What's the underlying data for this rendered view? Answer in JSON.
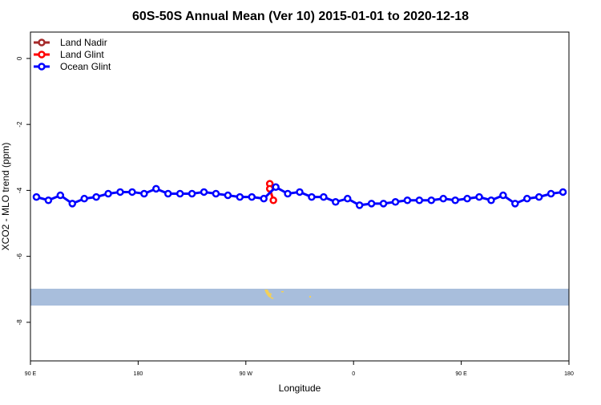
{
  "chart_data": {
    "type": "line",
    "title": "60S-50S Annual Mean (Ver 10)   2015-01-01 to 2020-12-18",
    "xlabel": "Longitude",
    "ylabel": "XCO2 - MLO trend (ppm)",
    "xlim": [
      90,
      540
    ],
    "ylim": [
      -9.17,
      0.8
    ],
    "xticks": [
      {
        "value": 90,
        "label": "90 E"
      },
      {
        "value": 180,
        "label": "180"
      },
      {
        "value": 270,
        "label": "90 W"
      },
      {
        "value": 360,
        "label": "0"
      },
      {
        "value": 450,
        "label": "90 E"
      },
      {
        "value": 540,
        "label": "180"
      }
    ],
    "yticks": [
      0,
      -2,
      -4,
      -6,
      -8
    ],
    "legend": "top-left",
    "series": [
      {
        "name": "Land Nadir",
        "color": "#a52a2a",
        "x": [],
        "values": []
      },
      {
        "name": "Land Glint",
        "color": "#ff0000",
        "x": [
          290,
          290,
          293
        ],
        "values": [
          -3.8,
          -3.95,
          -4.3
        ]
      },
      {
        "name": "Ocean Glint",
        "color": "#0000ff",
        "x": [
          95,
          105,
          115,
          125,
          135,
          145,
          155,
          165,
          175,
          185,
          195,
          205,
          215,
          225,
          235,
          245,
          255,
          265,
          275,
          285,
          295,
          305,
          315,
          325,
          335,
          345,
          355,
          365,
          375,
          385,
          395,
          405,
          415,
          425,
          435,
          445,
          455,
          465,
          475,
          485,
          495,
          505,
          515,
          525,
          535
        ],
        "values": [
          -4.2,
          -4.3,
          -4.15,
          -4.4,
          -4.25,
          -4.2,
          -4.1,
          -4.05,
          -4.05,
          -4.1,
          -3.95,
          -4.1,
          -4.1,
          -4.1,
          -4.05,
          -4.1,
          -4.15,
          -4.2,
          -4.2,
          -4.25,
          -3.9,
          -4.1,
          -4.05,
          -4.2,
          -4.2,
          -4.35,
          -4.25,
          -4.45,
          -4.4,
          -4.4,
          -4.35,
          -4.3,
          -4.3,
          -4.3,
          -4.25,
          -4.3,
          -4.25,
          -4.2,
          -4.3,
          -4.15,
          -4.4,
          -4.25,
          -4.2,
          -4.1,
          -4.05
        ]
      }
    ]
  }
}
